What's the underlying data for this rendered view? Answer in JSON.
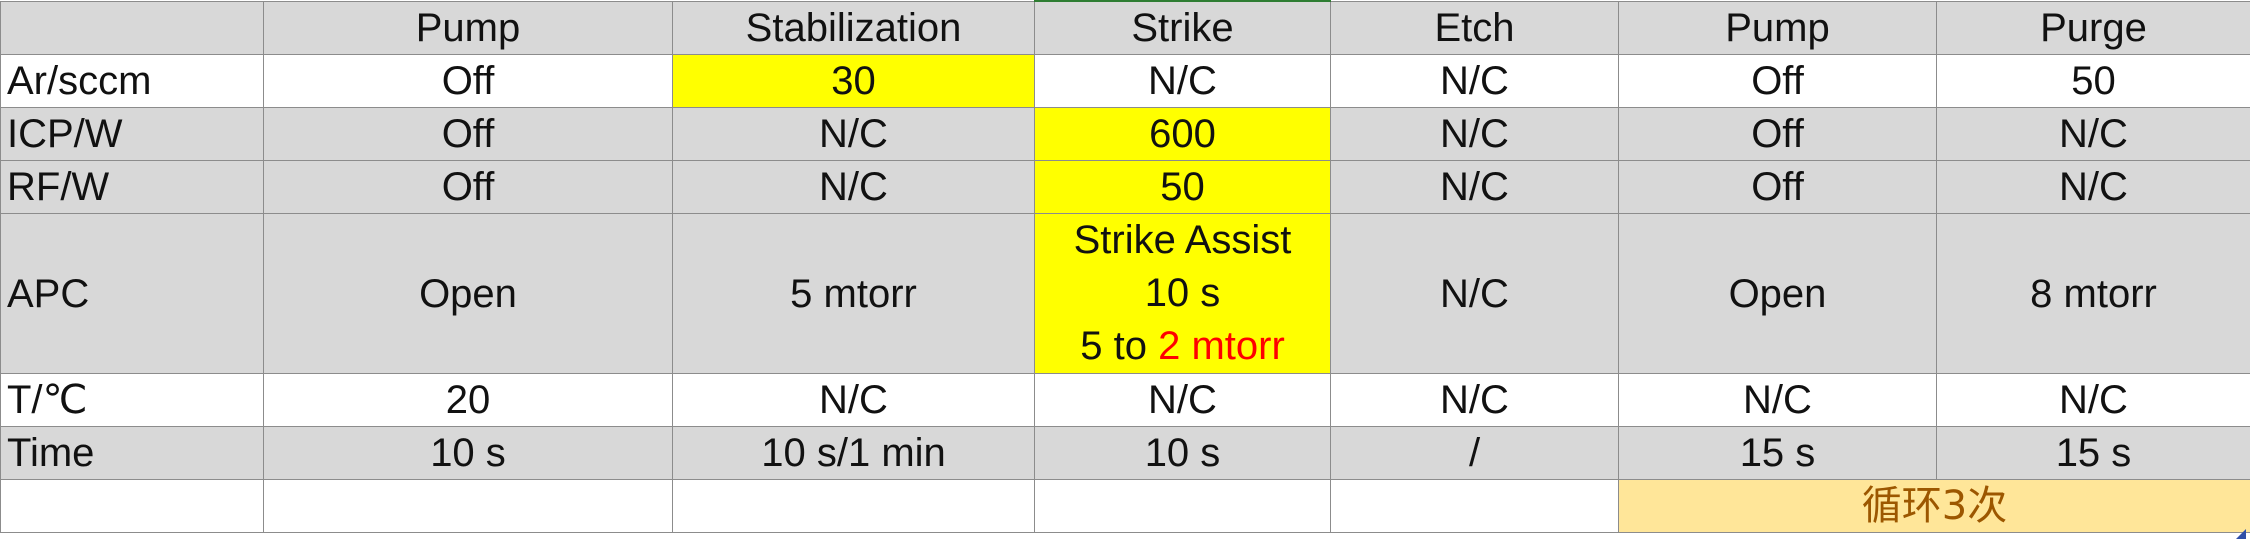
{
  "header": [
    "",
    "Pump",
    "Stabilization",
    "Strike",
    "Etch",
    "Pump",
    "Purge"
  ],
  "rows": [
    {
      "label": "Ar/sccm",
      "cells": [
        "Off",
        "30",
        "N/C",
        "N/C",
        "Off",
        "50"
      ]
    },
    {
      "label": "ICP/W",
      "cells": [
        "Off",
        "N/C",
        "600",
        "N/C",
        "Off",
        "N/C"
      ]
    },
    {
      "label": "RF/W",
      "cells": [
        "Off",
        "N/C",
        "50",
        "N/C",
        "Off",
        "N/C"
      ]
    },
    {
      "label": "APC",
      "cells": [
        "Open",
        "5 mtorr",
        "",
        "N/C",
        "Open",
        "8 mtorr"
      ],
      "strike_lines": [
        "Strike Assist",
        "10 s",
        "5 to ",
        "2 mtorr"
      ]
    },
    {
      "label": "T/℃",
      "cells": [
        "20",
        "N/C",
        "N/C",
        "N/C",
        "N/C",
        "N/C"
      ]
    },
    {
      "label": "Time",
      "cells": [
        "10 s",
        "10 s/1 min",
        "10 s",
        "/",
        "15 s",
        "15 s"
      ]
    }
  ],
  "loop_label": "循环3次",
  "colors": {
    "highlight": "#ffff00",
    "loop_fill": "#ffe699",
    "loop_text": "#9c5700",
    "alert_text": "#ff0000",
    "row_gray": "#d8d8d8"
  }
}
